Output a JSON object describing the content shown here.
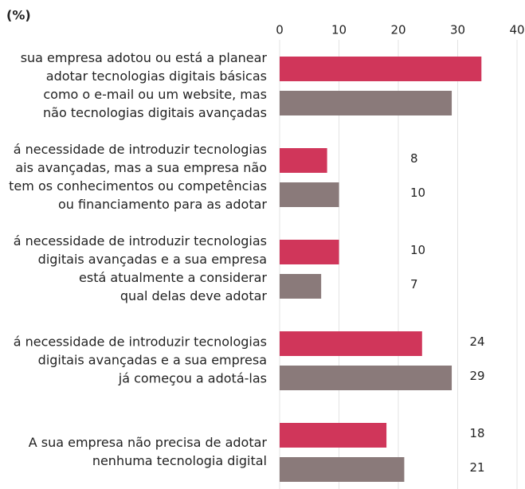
{
  "chart_data": {
    "type": "hbar",
    "title": "(%)",
    "categories": [
      [
        "sua empresa adotou ou está a planear",
        "adotar tecnologias digitais básicas",
        "como o e-mail ou um website, mas",
        "não tecnologias digitais avançadas"
      ],
      [
        "á necessidade de introduzir tecnologias",
        "ais avançadas, mas a sua empresa não",
        "tem os conhecimentos ou competências",
        "ou financiamento para as adotar"
      ],
      [
        "á necessidade de introduzir tecnologias",
        "digitais avançadas e a sua empresa",
        "está atualmente a considerar",
        "qual delas deve adotar"
      ],
      [
        "á necessidade de introduzir tecnologias",
        "digitais avançadas e a sua empresa",
        "já começou a adotá-las"
      ],
      [
        "A sua empresa não precisa de adotar",
        "nenhuma tecnologia digital"
      ]
    ],
    "series": [
      {
        "color": "#d0365a",
        "values": [
          34,
          8,
          10,
          24,
          18
        ],
        "value_labels": [
          null,
          "8",
          "10",
          "24",
          "18"
        ]
      },
      {
        "color": "#8a7a7a",
        "values": [
          29,
          10,
          7,
          29,
          21
        ],
        "value_labels": [
          null,
          "10",
          "7",
          "29",
          "21"
        ]
      }
    ],
    "xlim": [
      0,
      40
    ],
    "xticks": [
      0,
      10,
      20,
      30,
      40
    ],
    "grid": true
  }
}
